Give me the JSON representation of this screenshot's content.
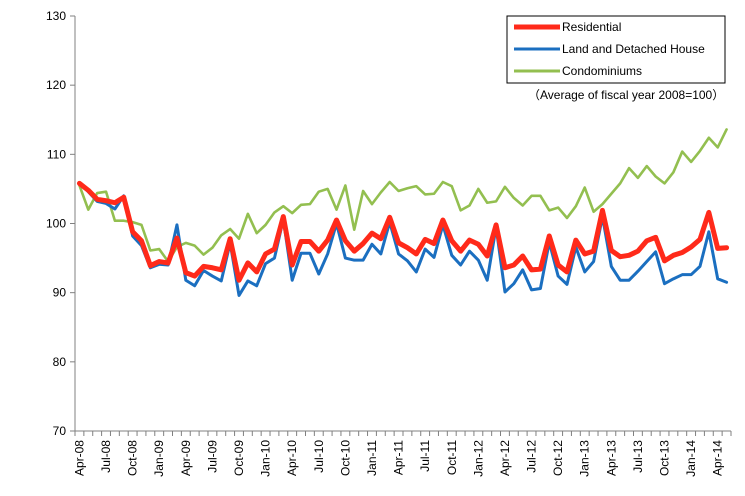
{
  "chart_data": {
    "type": "line",
    "title": "",
    "xlabel": "",
    "ylabel": "",
    "ylim": [
      70,
      130
    ],
    "yticks": [
      70,
      80,
      90,
      100,
      110,
      120,
      130
    ],
    "grid": false,
    "legend_position": "top-right",
    "note": "（Average of fiscal year 2008=100）",
    "x_tick_labels": [
      "Apr-08",
      "Jul-08",
      "Oct-08",
      "Jan-09",
      "Apr-09",
      "Jul-09",
      "Oct-09",
      "Jan-10",
      "Apr-10",
      "Jul-10",
      "Oct-10",
      "Jan-11",
      "Apr-11",
      "Jul-11",
      "Oct-11",
      "Jan-12",
      "Apr-12",
      "Jul-12",
      "Oct-12",
      "Jan-13",
      "Apr-13",
      "Jul-13",
      "Oct-13",
      "Jan-14",
      "Apr-14"
    ],
    "series": [
      {
        "name": "Residential",
        "color": "#ff2a1a",
        "values": [
          105.8,
          104.8,
          103.5,
          103.3,
          103.0,
          103.8,
          98.8,
          97.5,
          93.9,
          94.5,
          94.3,
          97.9,
          92.9,
          92.4,
          93.8,
          93.6,
          93.3,
          97.8,
          91.8,
          94.3,
          93.0,
          95.6,
          96.3,
          101.0,
          94.0,
          97.4,
          97.4,
          96.0,
          97.6,
          100.5,
          97.5,
          96.0,
          97.1,
          98.6,
          97.8,
          100.9,
          97.2,
          96.5,
          95.6,
          97.7,
          97.1,
          100.5,
          97.5,
          96.0,
          97.6,
          97.0,
          95.3,
          99.8,
          93.6,
          94.0,
          95.3,
          93.3,
          93.4,
          98.2,
          94.0,
          93.0,
          97.6,
          95.6,
          96.0,
          101.9,
          96.1,
          95.2,
          95.4,
          96.0,
          97.5,
          98.0,
          94.6,
          95.4,
          95.8,
          96.6,
          97.7,
          101.6,
          96.4,
          96.5
        ]
      },
      {
        "name": "Land and Detached House",
        "color": "#1b6fc0",
        "values": [
          105.9,
          104.6,
          103.2,
          102.9,
          102.1,
          104.0,
          98.2,
          96.8,
          93.6,
          94.1,
          94.0,
          99.8,
          91.8,
          91.0,
          93.2,
          92.4,
          91.7,
          97.2,
          89.6,
          91.7,
          91.0,
          94.2,
          95.0,
          100.6,
          91.8,
          95.7,
          95.7,
          92.7,
          95.6,
          100.0,
          95.0,
          94.7,
          94.7,
          97.0,
          95.6,
          100.2,
          95.6,
          94.6,
          93.0,
          96.3,
          95.1,
          99.8,
          95.4,
          94.0,
          96.0,
          94.7,
          91.8,
          99.5,
          90.1,
          91.3,
          93.3,
          90.4,
          90.6,
          97.3,
          92.4,
          91.2,
          96.6,
          93.0,
          94.5,
          101.0,
          93.8,
          91.8,
          91.8,
          93.1,
          94.5,
          95.9,
          91.3,
          92.0,
          92.6,
          92.6,
          93.8,
          98.8,
          92.0,
          91.5
        ]
      },
      {
        "name": "Condominiums",
        "color": "#93bf50",
        "values": [
          105.5,
          102.0,
          104.4,
          104.6,
          100.4,
          100.4,
          100.2,
          99.8,
          96.1,
          96.3,
          94.5,
          96.6,
          97.2,
          96.8,
          95.5,
          96.5,
          98.3,
          99.2,
          97.8,
          101.4,
          98.6,
          99.8,
          101.6,
          102.5,
          101.5,
          102.7,
          102.8,
          104.6,
          105.0,
          102.0,
          105.5,
          99.1,
          104.7,
          102.8,
          104.5,
          106.0,
          104.7,
          105.1,
          105.4,
          104.2,
          104.3,
          106.0,
          105.4,
          101.9,
          102.6,
          105.0,
          103.0,
          103.2,
          105.3,
          103.7,
          102.6,
          104.0,
          104.0,
          101.9,
          102.3,
          100.8,
          102.5,
          105.2,
          101.7,
          102.8,
          104.3,
          105.8,
          108.0,
          106.6,
          108.3,
          106.8,
          105.8,
          107.4,
          110.4,
          108.9,
          110.5,
          112.4,
          111.0,
          113.6
        ]
      }
    ]
  }
}
